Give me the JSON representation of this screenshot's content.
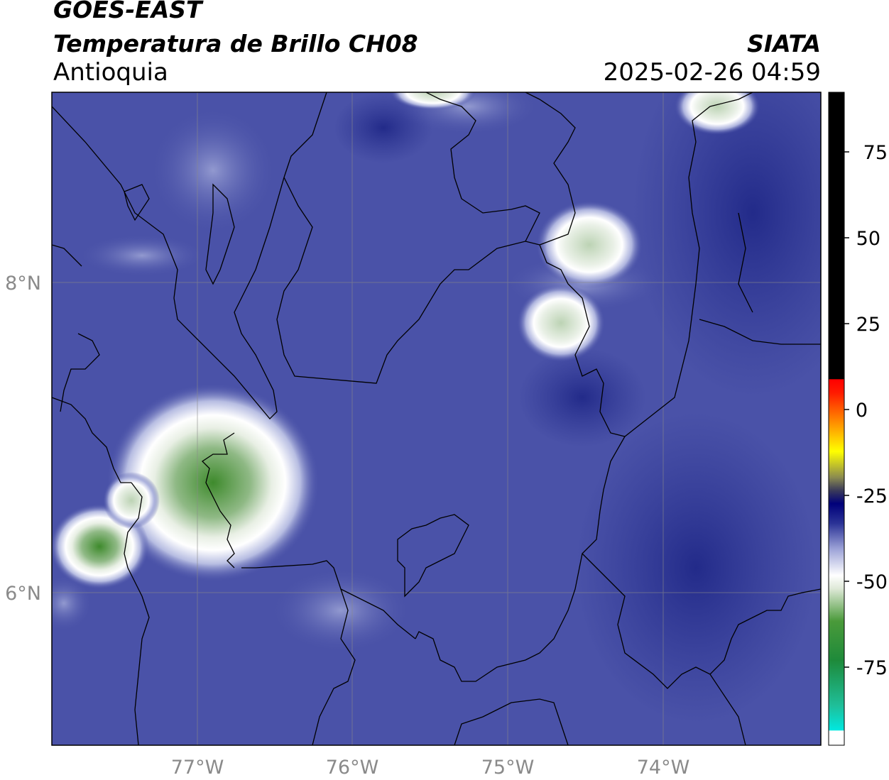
{
  "header": {
    "satellite": "GOES-EAST",
    "product": "Temperatura de Brillo CH08",
    "region": "Antioquia",
    "organization": "SIATA",
    "timestamp": "2025-02-26 04:59"
  },
  "map": {
    "axes": {
      "lon_ticks": [
        "77°W",
        "76°W",
        "75°W",
        "74°W"
      ],
      "lat_ticks": [
        "8°N",
        "6°N"
      ]
    }
  },
  "colorbar": {
    "ticks": [
      "75",
      "50",
      "25",
      "0",
      "-25",
      "-50",
      "-75"
    ],
    "colors": {
      "black": "#000000",
      "red": "#ff1a00",
      "orange": "#ff9900",
      "yellow": "#ffff00",
      "navy": "#00007a",
      "blue": "#30389a",
      "white": "#ffffff",
      "green": "#2e7d1e",
      "cyan": "#00e5d4"
    }
  },
  "colors": {
    "background": "#4a52a8",
    "cold_cloud": "#ffffff",
    "very_cold": "#3a8a2a"
  }
}
